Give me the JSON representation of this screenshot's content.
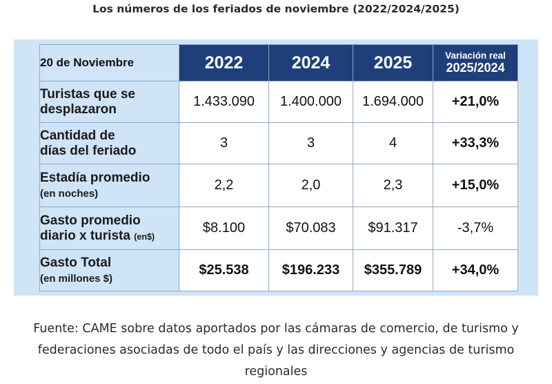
{
  "title": "Los números de los feriados de noviembre (2022/2024/2025)",
  "table": {
    "corner": "20 de Noviembre",
    "years": [
      "2022",
      "2024",
      "2025"
    ],
    "variation_header": {
      "line1": "Variación real",
      "line2": "2025/2024"
    },
    "rows": [
      {
        "label_line1": "Turistas que se",
        "label_line2": "desplazaron",
        "label_unit": "",
        "values": [
          "1.433.090",
          "1.400.000",
          "1.694.000"
        ],
        "variation": "+21,0%"
      },
      {
        "label_line1": "Cantidad de",
        "label_line2": "días del feriado",
        "label_unit": "",
        "values": [
          "3",
          "3",
          "4"
        ],
        "variation": "+33,3%"
      },
      {
        "label_line1": "Estadía promedio",
        "label_line2": "(en noches)",
        "label_unit": "",
        "values": [
          "2,2",
          "2,0",
          "2,3"
        ],
        "variation": "+15,0%"
      },
      {
        "label_line1": "Gasto promedio",
        "label_line2": "diario x turista ",
        "label_unit": "(en$)",
        "values": [
          "$8.100",
          "$70.083",
          "$91.317"
        ],
        "variation": "-3,7%"
      },
      {
        "label_line1": "Gasto Total",
        "label_line2": "(en millones $)",
        "label_unit": "",
        "values": [
          "$25.538",
          "$196.233",
          "$355.789"
        ],
        "variation": "+34,0%"
      }
    ]
  },
  "source": {
    "line1": "Fuente: CAME sobre datos aportados por las cámaras de comercio, de turismo y",
    "line2": "federaciones asociadas de todo el país y las direcciones y agencias de turismo",
    "line3": "regionales"
  }
}
